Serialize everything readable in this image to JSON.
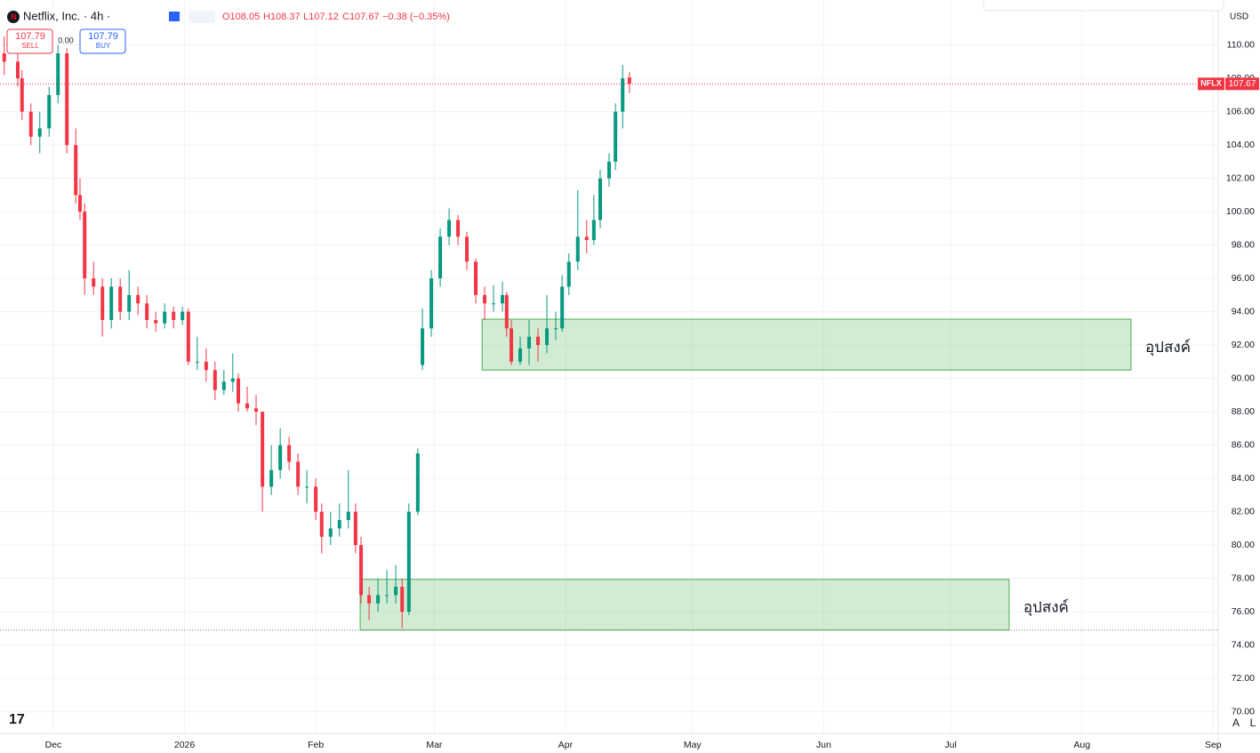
{
  "header": {
    "symbol": "Netflix, Inc. · 4h ·",
    "open": "O108.05",
    "high": "H108.37",
    "low": "L107.12",
    "close": "C107.67",
    "change": "−0.38 (−0.35%)",
    "sell_price": "107.79",
    "sell": "SELL",
    "spread": "0.00",
    "buy_price": "107.79",
    "buy": "BUY",
    "currency": "USD",
    "ticker": "NFLX",
    "bottom_right": [
      "A",
      "L"
    ]
  },
  "chart_data": {
    "type": "candlestick",
    "up_color": "#089981",
    "down_color": "#f23645",
    "x": [
      18.4,
      21.6,
      22.6,
      24.7,
      26.8,
      29.0,
      31.1,
      33.2,
      35.3,
      36.3,
      37.4,
      39.5,
      41.6,
      43.7,
      45.8,
      47.9,
      50.0,
      52.1,
      54.2,
      56.3,
      58.4,
      60.5,
      61.9,
      64.0,
      66.1,
      68.2,
      70.3,
      72.4,
      73.7,
      75.8,
      77.9,
      79.4,
      81.5,
      83.6,
      85.7,
      87.8,
      89.9,
      92.0,
      93.4,
      95.5,
      97.6,
      99.7,
      101.4,
      102.7,
      104.6,
      106.7,
      108.8,
      110.9,
      112.4,
      114.0,
      116.1,
      117.2,
      119.3,
      121.4,
      123.5,
      125.6,
      127.7,
      129.8,
      131.9,
      134.0,
      136.1,
      137.1,
      138.2,
      140.3,
      142.4,
      144.5,
      146.6,
      148.7,
      150.2,
      151.8,
      153.9,
      156.0,
      157.7,
      159.2,
      161.3,
      162.8,
      164.5,
      166.1
    ],
    "open": [
      109.5,
      109,
      108,
      106,
      104.5,
      105,
      107,
      109.5,
      104,
      101,
      100,
      96,
      95.5,
      93.5,
      95.5,
      94,
      95,
      94.5,
      93.5,
      93.3,
      94,
      93.5,
      94,
      91,
      91,
      90.5,
      89.3,
      89.8,
      90,
      88.5,
      88.2,
      88,
      83.5,
      84.5,
      86,
      85,
      83.5,
      83.5,
      82,
      80.5,
      81,
      81.5,
      82,
      80,
      77,
      76.5,
      77,
      77,
      77.5,
      76,
      82,
      90.8,
      93,
      96,
      98.5,
      99.5,
      98.5,
      97,
      95,
      94.5,
      94.5,
      95,
      93,
      91,
      91.8,
      92.5,
      92,
      93,
      93,
      95.5,
      97,
      98.5,
      98.3,
      99.5,
      102,
      103,
      106,
      108.05
    ],
    "high": [
      110.5,
      109.5,
      108.5,
      106.5,
      106,
      107.5,
      110,
      109.8,
      105,
      102,
      100.5,
      97,
      96,
      96,
      96,
      96.5,
      95.5,
      95,
      94,
      94.5,
      94.3,
      94.3,
      94.2,
      92.5,
      91.8,
      91,
      90.5,
      91.5,
      90.3,
      89.5,
      89,
      88,
      86,
      87,
      86.5,
      85.5,
      84.5,
      84,
      82.5,
      82,
      82.5,
      84.5,
      82.5,
      80.5,
      77.5,
      78,
      78.5,
      78.8,
      78,
      82.5,
      85.8,
      94.2,
      96.5,
      99,
      100.2,
      99.8,
      98.8,
      97.2,
      95.5,
      95.6,
      95.8,
      95.2,
      93.5,
      92.5,
      93.5,
      93,
      95,
      94,
      96.2,
      97.5,
      101.3,
      99.5,
      101,
      102.5,
      103.5,
      106.5,
      108.8,
      108.37
    ],
    "low": [
      108.2,
      107.5,
      105.5,
      104,
      103.5,
      104.5,
      106.5,
      103.5,
      100.5,
      99.5,
      95,
      95,
      92.5,
      93,
      93.5,
      93.5,
      93.8,
      93,
      92.8,
      93,
      93,
      93.2,
      90.8,
      90.5,
      89.8,
      88.7,
      89,
      89.2,
      88,
      88,
      87.2,
      82,
      83,
      84,
      84.5,
      83,
      82.5,
      81.5,
      79.5,
      80,
      80.5,
      81,
      79.5,
      76.5,
      75.5,
      76,
      76.5,
      76.5,
      75,
      75.8,
      81.8,
      90.5,
      92.5,
      95.5,
      98,
      98,
      96.5,
      94.5,
      93.5,
      94,
      94,
      92.5,
      90.8,
      90.8,
      90.8,
      91,
      91.5,
      92.3,
      92.8,
      95,
      96.5,
      97.5,
      98,
      99,
      101.5,
      102.5,
      105,
      107.12
    ],
    "close": [
      109,
      108,
      106,
      104.5,
      105,
      107,
      109.5,
      104,
      101,
      100,
      96,
      95.5,
      93.5,
      95.5,
      94,
      95,
      94.5,
      93.5,
      93.3,
      94,
      93.5,
      94,
      91,
      91,
      90.5,
      89.3,
      89.8,
      90,
      88.5,
      88.2,
      88,
      83.5,
      84.5,
      86,
      85,
      83.5,
      83.5,
      82,
      80.5,
      81,
      81.5,
      82,
      80,
      77,
      76.5,
      77,
      77,
      77.5,
      76,
      82,
      85.5,
      93,
      96,
      98.5,
      99.5,
      98.5,
      97,
      95,
      94.5,
      94.5,
      95,
      93,
      91,
      91.8,
      92.5,
      92,
      93,
      93,
      95.5,
      97,
      98.5,
      98.3,
      99.5,
      102,
      103,
      106,
      108,
      107.67
    ],
    "xlim": [
      17.4,
      305.2
    ],
    "ylim": [
      68.7,
      112.7
    ],
    "xticks": [
      {
        "value": 30,
        "label": "Dec"
      },
      {
        "value": 61,
        "label": "2026"
      },
      {
        "value": 92,
        "label": "Feb"
      },
      {
        "value": 120,
        "label": "Mar"
      },
      {
        "value": 151,
        "label": "Apr"
      },
      {
        "value": 181,
        "label": "May"
      },
      {
        "value": 212,
        "label": "Jun"
      },
      {
        "value": 242,
        "label": "Jul"
      },
      {
        "value": 273,
        "label": "Aug"
      },
      {
        "value": 304,
        "label": "Sep"
      }
    ],
    "yticks": [
      {
        "value": 70,
        "label": "70.00"
      },
      {
        "value": 72,
        "label": "72.00"
      },
      {
        "value": 74,
        "label": "74.00"
      },
      {
        "value": 76,
        "label": "76.00"
      },
      {
        "value": 78,
        "label": "78.00"
      },
      {
        "value": 80,
        "label": "80.00"
      },
      {
        "value": 82,
        "label": "82.00"
      },
      {
        "value": 84,
        "label": "84.00"
      },
      {
        "value": 86,
        "label": "86.00"
      },
      {
        "value": 88,
        "label": "88.00"
      },
      {
        "value": 90,
        "label": "90.00"
      },
      {
        "value": 92,
        "label": "92.00"
      },
      {
        "value": 94,
        "label": "94.00"
      },
      {
        "value": 96,
        "label": "96.00"
      },
      {
        "value": 98,
        "label": "98.00"
      },
      {
        "value": 100,
        "label": "100.00"
      },
      {
        "value": 102,
        "label": "102.00"
      },
      {
        "value": 104,
        "label": "104.00"
      },
      {
        "value": 106,
        "label": "106.00"
      },
      {
        "value": 108,
        "label": "108.00"
      },
      {
        "value": 110,
        "label": "110.00"
      }
    ],
    "grid": true,
    "zones": [
      {
        "label": "อุปสงค์",
        "x": [
          131.3,
          284.6
        ],
        "y": [
          90.5,
          93.55
        ]
      },
      {
        "label": "อุปสงค์",
        "x": [
          102.5,
          255.8
        ],
        "y": [
          74.9,
          77.94
        ]
      }
    ]
  }
}
